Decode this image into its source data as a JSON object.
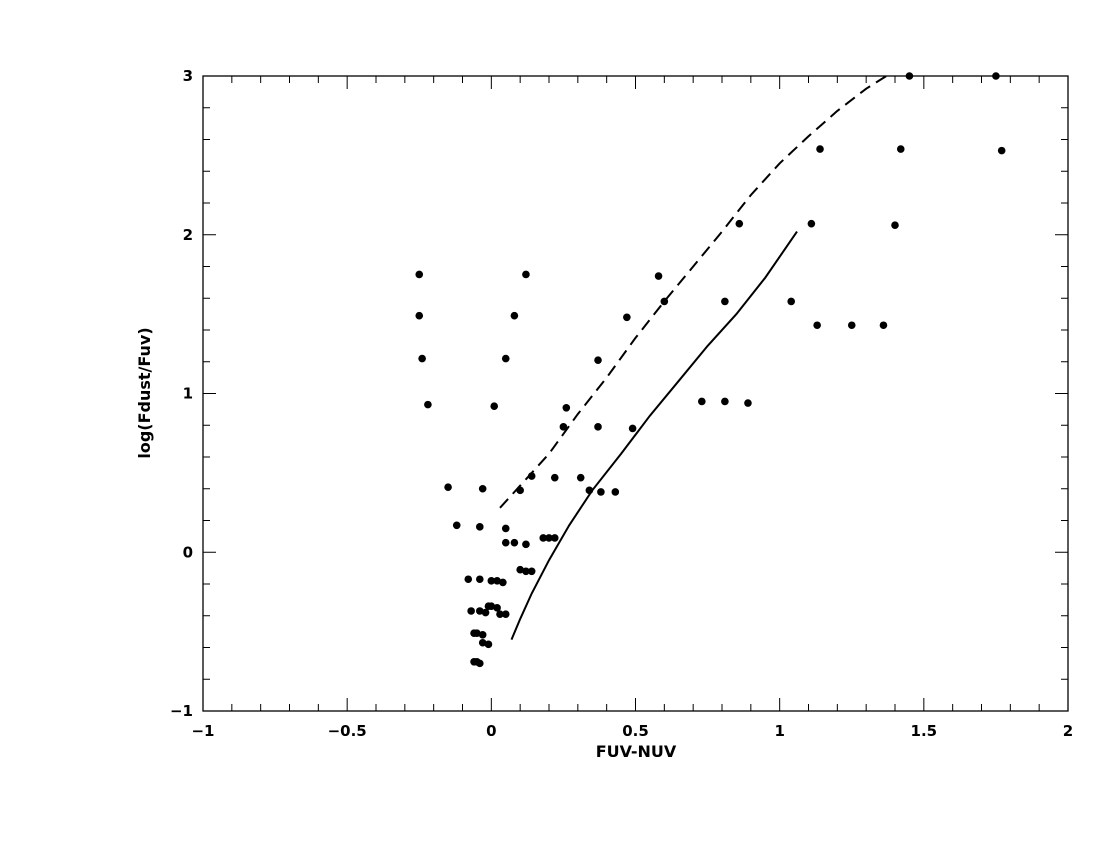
{
  "chart_data": {
    "type": "scatter",
    "title": "",
    "xlabel": "FUV-NUV",
    "ylabel": "log(Fdust/Fuv)",
    "xlim": [
      -1,
      2
    ],
    "ylim": [
      -1,
      3
    ],
    "x_ticks": [
      -1,
      -0.5,
      0,
      0.5,
      1,
      1.5,
      2
    ],
    "x_tick_labels": [
      "−1",
      "−0.5",
      "0",
      "0.5",
      "1",
      "1.5",
      "2"
    ],
    "y_ticks": [
      -1,
      0,
      1,
      2,
      3
    ],
    "y_tick_labels": [
      "−1",
      "0",
      "1",
      "2",
      "3"
    ],
    "grid": false,
    "legend": "none",
    "colors": {
      "axis": "#000000",
      "points": "#000000",
      "lines": "#000000"
    },
    "series": [
      {
        "kind": "scatter",
        "points": [
          [
            -0.25,
            1.75
          ],
          [
            -0.25,
            1.49
          ],
          [
            -0.24,
            1.22
          ],
          [
            -0.22,
            0.93
          ],
          [
            0.12,
            1.75
          ],
          [
            0.08,
            1.49
          ],
          [
            0.05,
            1.22
          ],
          [
            0.01,
            0.92
          ],
          [
            -0.15,
            0.41
          ],
          [
            -0.03,
            0.4
          ],
          [
            -0.12,
            0.17
          ],
          [
            -0.04,
            0.16
          ],
          [
            0.1,
            0.39
          ],
          [
            0.14,
            0.48
          ],
          [
            0.05,
            0.15
          ],
          [
            0.05,
            0.06
          ],
          [
            0.08,
            0.06
          ],
          [
            0.12,
            0.05
          ],
          [
            0.18,
            0.09
          ],
          [
            0.2,
            0.09
          ],
          [
            0.22,
            0.09
          ],
          [
            0.22,
            0.47
          ],
          [
            0.31,
            0.47
          ],
          [
            0.34,
            0.39
          ],
          [
            0.38,
            0.38
          ],
          [
            0.43,
            0.38
          ],
          [
            0.25,
            0.79
          ],
          [
            0.26,
            0.91
          ],
          [
            0.37,
            0.79
          ],
          [
            0.37,
            1.21
          ],
          [
            0.47,
            1.48
          ],
          [
            0.49,
            0.78
          ],
          [
            0.58,
            1.74
          ],
          [
            0.6,
            1.58
          ],
          [
            0.73,
            0.95
          ],
          [
            0.81,
            0.95
          ],
          [
            0.81,
            1.58
          ],
          [
            0.86,
            2.07
          ],
          [
            0.89,
            0.94
          ],
          [
            1.04,
            1.58
          ],
          [
            1.11,
            2.07
          ],
          [
            1.13,
            1.43
          ],
          [
            1.14,
            2.54
          ],
          [
            1.25,
            1.43
          ],
          [
            1.36,
            1.43
          ],
          [
            1.4,
            2.06
          ],
          [
            1.42,
            2.54
          ],
          [
            1.45,
            3.0
          ],
          [
            1.75,
            3.0
          ],
          [
            1.77,
            2.53
          ],
          [
            -0.08,
            -0.17
          ],
          [
            -0.04,
            -0.17
          ],
          [
            0.0,
            -0.18
          ],
          [
            0.02,
            -0.18
          ],
          [
            0.04,
            -0.19
          ],
          [
            0.1,
            -0.11
          ],
          [
            0.12,
            -0.12
          ],
          [
            0.14,
            -0.12
          ],
          [
            -0.07,
            -0.37
          ],
          [
            -0.04,
            -0.37
          ],
          [
            -0.02,
            -0.38
          ],
          [
            -0.01,
            -0.34
          ],
          [
            0.0,
            -0.34
          ],
          [
            0.02,
            -0.35
          ],
          [
            0.03,
            -0.39
          ],
          [
            0.05,
            -0.39
          ],
          [
            -0.06,
            -0.51
          ],
          [
            -0.05,
            -0.51
          ],
          [
            -0.03,
            -0.52
          ],
          [
            -0.03,
            -0.57
          ],
          [
            -0.01,
            -0.58
          ],
          [
            -0.06,
            -0.69
          ],
          [
            -0.05,
            -0.69
          ],
          [
            -0.04,
            -0.7
          ]
        ]
      },
      {
        "kind": "line",
        "style": "solid",
        "points": [
          [
            0.07,
            -0.55
          ],
          [
            0.1,
            -0.42
          ],
          [
            0.14,
            -0.26
          ],
          [
            0.2,
            -0.05
          ],
          [
            0.27,
            0.17
          ],
          [
            0.35,
            0.39
          ],
          [
            0.45,
            0.62
          ],
          [
            0.55,
            0.86
          ],
          [
            0.65,
            1.08
          ],
          [
            0.75,
            1.3
          ],
          [
            0.85,
            1.5
          ],
          [
            0.95,
            1.73
          ],
          [
            1.06,
            2.02
          ]
        ]
      },
      {
        "kind": "line",
        "style": "dashed",
        "points": [
          [
            0.03,
            0.28
          ],
          [
            0.1,
            0.42
          ],
          [
            0.2,
            0.62
          ],
          [
            0.3,
            0.87
          ],
          [
            0.4,
            1.1
          ],
          [
            0.5,
            1.35
          ],
          [
            0.6,
            1.58
          ],
          [
            0.7,
            1.8
          ],
          [
            0.8,
            2.02
          ],
          [
            0.9,
            2.25
          ],
          [
            1.0,
            2.45
          ],
          [
            1.1,
            2.62
          ],
          [
            1.2,
            2.78
          ],
          [
            1.3,
            2.92
          ],
          [
            1.37,
            3.0
          ]
        ]
      }
    ]
  }
}
